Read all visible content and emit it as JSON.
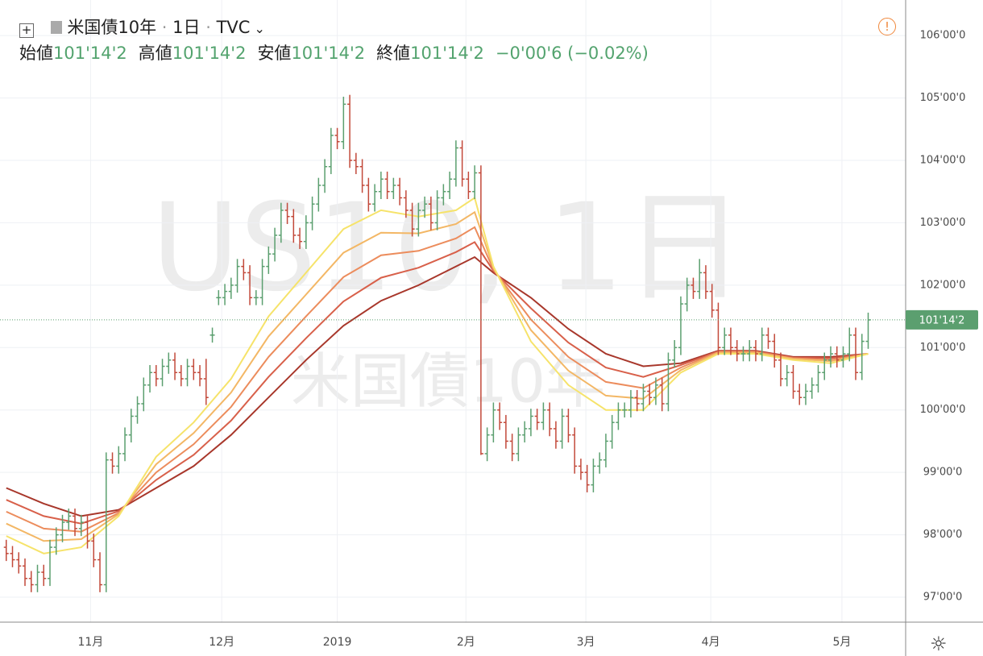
{
  "header": {
    "symbol_name": "米国債10年",
    "interval": "1日",
    "exchange": "TVC",
    "ohlc_legend": [
      {
        "label": "始値",
        "value": "101'14'2"
      },
      {
        "label": "高値",
        "value": "101'14'2"
      },
      {
        "label": "安値",
        "value": "101'14'2"
      },
      {
        "label": "終値",
        "value": "101'14'2"
      }
    ],
    "change": "−0'00'6 (−0.02%)"
  },
  "watermark": {
    "symbol": "US10, 1日",
    "name": "米国債10年"
  },
  "chart_data": {
    "type": "ohlc",
    "up_color": "#5b9f6f",
    "down_color": "#c2493a",
    "grid": true,
    "ylim": [
      96.6,
      106.57
    ],
    "xlim": [
      -1,
      144
    ],
    "yticks": [
      {
        "value": 97,
        "label": "97'00'0"
      },
      {
        "value": 98,
        "label": "98'00'0"
      },
      {
        "value": 99,
        "label": "99'00'0"
      },
      {
        "value": 100,
        "label": "100'00'0"
      },
      {
        "value": 101,
        "label": "101'00'0"
      },
      {
        "value": 102,
        "label": "102'00'0"
      },
      {
        "value": 103,
        "label": "103'00'0"
      },
      {
        "value": 104,
        "label": "104'00'0"
      },
      {
        "value": 105,
        "label": "105'00'0"
      },
      {
        "value": 106,
        "label": "106'00'0"
      }
    ],
    "xticks": [
      {
        "value": 13.5,
        "label": "11月"
      },
      {
        "value": 34.5,
        "label": "12月"
      },
      {
        "value": 53,
        "label": "2019"
      },
      {
        "value": 73.6,
        "label": "2月"
      },
      {
        "value": 92.8,
        "label": "3月"
      },
      {
        "value": 112.8,
        "label": "4月"
      },
      {
        "value": 133.8,
        "label": "5月"
      }
    ],
    "last_price": {
      "value": 101.44375,
      "label": "101'14'2",
      "color": "#5b9f6f"
    },
    "bars": [
      [
        97.8,
        97.92,
        97.58,
        97.7
      ],
      [
        97.7,
        97.82,
        97.48,
        97.6
      ],
      [
        97.6,
        97.72,
        97.38,
        97.5
      ],
      [
        97.5,
        97.62,
        97.18,
        97.3
      ],
      [
        97.3,
        97.42,
        97.08,
        97.2
      ],
      [
        97.2,
        97.52,
        97.08,
        97.4
      ],
      [
        97.4,
        97.52,
        97.18,
        97.3
      ],
      [
        97.3,
        97.92,
        97.18,
        97.8
      ],
      [
        97.8,
        98.12,
        97.68,
        98.0
      ],
      [
        98.0,
        98.32,
        97.88,
        98.2
      ],
      [
        98.2,
        98.42,
        98.08,
        98.3
      ],
      [
        98.3,
        98.42,
        97.98,
        98.1
      ],
      [
        98.1,
        98.32,
        97.98,
        98.2
      ],
      [
        98.2,
        98.32,
        97.78,
        97.9
      ],
      [
        97.9,
        98.02,
        97.48,
        97.6
      ],
      [
        97.6,
        97.72,
        97.08,
        97.2
      ],
      [
        97.2,
        99.32,
        97.08,
        99.2
      ],
      [
        99.2,
        99.32,
        98.98,
        99.1
      ],
      [
        99.1,
        99.42,
        98.98,
        99.3
      ],
      [
        99.3,
        99.72,
        99.18,
        99.6
      ],
      [
        99.6,
        100.02,
        99.48,
        99.9
      ],
      [
        99.9,
        100.22,
        99.78,
        100.1
      ],
      [
        100.1,
        100.52,
        99.98,
        100.4
      ],
      [
        100.4,
        100.72,
        100.28,
        100.6
      ],
      [
        100.6,
        100.72,
        100.38,
        100.5
      ],
      [
        100.5,
        100.82,
        100.38,
        100.7
      ],
      [
        100.7,
        100.92,
        100.58,
        100.8
      ],
      [
        100.8,
        100.92,
        100.48,
        100.6
      ],
      [
        100.6,
        100.72,
        100.38,
        100.5
      ],
      [
        100.5,
        100.82,
        100.38,
        100.7
      ],
      [
        100.7,
        100.82,
        100.48,
        100.6
      ],
      [
        100.6,
        100.72,
        100.38,
        100.5
      ],
      [
        100.5,
        100.82,
        100.08,
        100.2
      ],
      [
        101.2,
        101.32,
        101.08,
        101.2
      ],
      [
        101.8,
        101.92,
        101.68,
        101.8
      ],
      [
        101.8,
        102.02,
        101.68,
        101.9
      ],
      [
        101.9,
        102.12,
        101.78,
        102.0
      ],
      [
        102.0,
        102.42,
        101.88,
        102.3
      ],
      [
        102.3,
        102.42,
        102.08,
        102.2
      ],
      [
        102.2,
        102.32,
        101.68,
        101.8
      ],
      [
        101.8,
        101.92,
        101.68,
        101.8
      ],
      [
        101.8,
        102.42,
        101.68,
        102.3
      ],
      [
        102.3,
        102.62,
        102.18,
        102.5
      ],
      [
        102.5,
        102.92,
        102.38,
        102.8
      ],
      [
        102.8,
        103.32,
        102.68,
        103.2
      ],
      [
        103.2,
        103.32,
        102.98,
        103.1
      ],
      [
        103.1,
        103.22,
        102.68,
        102.8
      ],
      [
        102.8,
        102.92,
        102.58,
        102.7
      ],
      [
        102.7,
        103.12,
        102.58,
        103.0
      ],
      [
        103.0,
        103.42,
        102.88,
        103.3
      ],
      [
        103.3,
        103.72,
        103.18,
        103.6
      ],
      [
        103.6,
        104.02,
        103.48,
        103.9
      ],
      [
        103.9,
        104.52,
        103.78,
        104.4
      ],
      [
        104.4,
        104.52,
        104.18,
        104.3
      ],
      [
        104.3,
        105.02,
        104.18,
        104.9
      ],
      [
        104.9,
        105.05,
        103.88,
        104.0
      ],
      [
        104.0,
        104.12,
        103.78,
        103.9
      ],
      [
        103.9,
        104.02,
        103.48,
        103.6
      ],
      [
        103.6,
        103.72,
        103.18,
        103.3
      ],
      [
        103.3,
        103.62,
        103.18,
        103.5
      ],
      [
        103.5,
        103.82,
        103.38,
        103.7
      ],
      [
        103.7,
        103.82,
        103.38,
        103.5
      ],
      [
        103.5,
        103.72,
        103.38,
        103.6
      ],
      [
        103.6,
        103.72,
        103.28,
        103.4
      ],
      [
        103.4,
        103.52,
        103.08,
        103.2
      ],
      [
        103.2,
        103.32,
        102.78,
        102.9
      ],
      [
        102.9,
        103.32,
        102.78,
        103.2
      ],
      [
        103.2,
        103.42,
        103.08,
        103.3
      ],
      [
        103.3,
        103.42,
        102.88,
        103.0
      ],
      [
        103.0,
        103.52,
        102.88,
        103.4
      ],
      [
        103.4,
        103.62,
        103.28,
        103.5
      ],
      [
        103.5,
        103.82,
        103.38,
        103.7
      ],
      [
        103.7,
        104.32,
        103.58,
        104.2
      ],
      [
        104.2,
        104.32,
        103.58,
        103.7
      ],
      [
        103.7,
        103.82,
        103.38,
        103.5
      ],
      [
        103.5,
        103.92,
        103.38,
        103.8
      ],
      [
        103.8,
        103.92,
        99.28,
        99.3
      ],
      [
        99.3,
        99.72,
        99.18,
        99.6
      ],
      [
        99.6,
        100.12,
        99.48,
        100.0
      ],
      [
        100.0,
        100.12,
        99.68,
        99.8
      ],
      [
        99.8,
        99.92,
        99.38,
        99.5
      ],
      [
        99.5,
        99.62,
        99.18,
        99.3
      ],
      [
        99.3,
        99.72,
        99.18,
        99.6
      ],
      [
        99.6,
        99.82,
        99.48,
        99.7
      ],
      [
        99.7,
        100.02,
        99.58,
        99.9
      ],
      [
        99.9,
        100.02,
        99.68,
        99.8
      ],
      [
        99.8,
        100.12,
        99.68,
        100.0
      ],
      [
        100.0,
        100.12,
        99.58,
        99.7
      ],
      [
        99.7,
        99.82,
        99.38,
        99.5
      ],
      [
        99.5,
        100.02,
        99.38,
        99.9
      ],
      [
        99.9,
        100.02,
        99.48,
        99.6
      ],
      [
        99.6,
        99.72,
        98.98,
        99.1
      ],
      [
        99.1,
        99.22,
        98.88,
        99.0
      ],
      [
        99.0,
        99.12,
        98.68,
        98.8
      ],
      [
        98.8,
        99.22,
        98.68,
        99.1
      ],
      [
        99.1,
        99.32,
        98.98,
        99.2
      ],
      [
        99.2,
        99.62,
        99.08,
        99.5
      ],
      [
        99.5,
        99.92,
        99.38,
        99.8
      ],
      [
        99.8,
        100.12,
        99.68,
        100.0
      ],
      [
        100.0,
        100.12,
        99.88,
        100.0
      ],
      [
        100.0,
        100.32,
        99.88,
        100.2
      ],
      [
        100.2,
        100.32,
        99.98,
        100.1
      ],
      [
        100.1,
        100.42,
        99.98,
        100.3
      ],
      [
        100.3,
        100.42,
        100.08,
        100.2
      ],
      [
        100.2,
        100.52,
        100.08,
        100.4
      ],
      [
        100.4,
        100.52,
        99.98,
        100.1
      ],
      [
        100.1,
        100.92,
        99.98,
        100.8
      ],
      [
        100.8,
        101.12,
        100.68,
        101.0
      ],
      [
        101.0,
        101.82,
        100.88,
        101.7
      ],
      [
        101.7,
        102.12,
        101.58,
        102.0
      ],
      [
        102.0,
        102.12,
        101.78,
        101.9
      ],
      [
        101.9,
        102.42,
        101.78,
        102.2
      ],
      [
        102.2,
        102.32,
        101.78,
        101.9
      ],
      [
        101.9,
        102.02,
        101.48,
        101.6
      ],
      [
        101.6,
        101.72,
        100.88,
        101.0
      ],
      [
        101.0,
        101.32,
        100.88,
        101.2
      ],
      [
        101.2,
        101.32,
        100.88,
        101.0
      ],
      [
        101.0,
        101.12,
        100.78,
        100.9
      ],
      [
        100.9,
        101.02,
        100.78,
        100.9
      ],
      [
        100.9,
        101.12,
        100.78,
        101.0
      ],
      [
        101.0,
        101.12,
        100.78,
        100.9
      ],
      [
        100.9,
        101.32,
        100.78,
        101.2
      ],
      [
        101.2,
        101.32,
        100.98,
        101.1
      ],
      [
        101.1,
        101.22,
        100.68,
        100.8
      ],
      [
        100.8,
        100.92,
        100.38,
        100.5
      ],
      [
        100.5,
        100.72,
        100.38,
        100.6
      ],
      [
        100.6,
        100.72,
        100.18,
        100.3
      ],
      [
        100.3,
        100.42,
        100.08,
        100.2
      ],
      [
        100.2,
        100.42,
        100.08,
        100.3
      ],
      [
        100.3,
        100.52,
        100.18,
        100.4
      ],
      [
        100.4,
        100.72,
        100.28,
        100.6
      ],
      [
        100.6,
        100.92,
        100.48,
        100.8
      ],
      [
        100.8,
        101.02,
        100.68,
        100.9
      ],
      [
        100.9,
        101.02,
        100.68,
        100.8
      ],
      [
        100.8,
        101.02,
        100.68,
        100.9
      ],
      [
        100.9,
        101.32,
        100.78,
        101.2
      ],
      [
        101.2,
        101.32,
        100.48,
        100.6
      ],
      [
        100.6,
        101.22,
        100.48,
        101.1
      ],
      [
        101.1,
        101.56,
        100.98,
        101.44375
      ]
    ],
    "ribbon": {
      "x": [
        0,
        6,
        12,
        18,
        24,
        30,
        36,
        42,
        48,
        54,
        60,
        66,
        72,
        75,
        78,
        84,
        90,
        96,
        102,
        108,
        114,
        120,
        126,
        132,
        138
      ],
      "series": [
        {
          "color": "#a8372b",
          "values": [
            98.75,
            98.5,
            98.3,
            98.4,
            98.75,
            99.1,
            99.6,
            100.2,
            100.8,
            101.35,
            101.75,
            102.0,
            102.3,
            102.45,
            102.2,
            101.8,
            101.3,
            100.9,
            100.7,
            100.75,
            100.95,
            100.95,
            100.85,
            100.85,
            100.9
          ]
        },
        {
          "color": "#d8604a",
          "values": [
            98.56,
            98.3,
            98.18,
            98.38,
            98.88,
            99.28,
            99.83,
            100.53,
            101.15,
            101.74,
            102.12,
            102.28,
            102.53,
            102.69,
            102.23,
            101.63,
            101.08,
            100.68,
            100.53,
            100.72,
            100.94,
            100.94,
            100.84,
            100.83,
            100.9
          ]
        },
        {
          "color": "#ec8c5c",
          "values": [
            98.37,
            98.1,
            98.05,
            98.35,
            99.0,
            99.45,
            100.05,
            100.85,
            101.5,
            102.13,
            102.48,
            102.55,
            102.75,
            102.93,
            102.25,
            101.45,
            100.85,
            100.45,
            100.35,
            100.68,
            100.93,
            100.93,
            100.83,
            100.8,
            100.9
          ]
        },
        {
          "color": "#f3b765",
          "values": [
            98.18,
            97.9,
            97.93,
            98.33,
            99.13,
            99.63,
            100.28,
            101.18,
            101.85,
            102.52,
            102.84,
            102.83,
            102.98,
            103.17,
            102.28,
            101.28,
            100.63,
            100.23,
            100.18,
            100.64,
            100.92,
            100.92,
            100.82,
            100.78,
            100.9
          ]
        },
        {
          "color": "#f6e36a",
          "values": [
            97.98,
            97.7,
            97.8,
            98.3,
            99.25,
            99.8,
            100.5,
            101.5,
            102.2,
            102.9,
            103.2,
            103.1,
            103.2,
            103.4,
            102.3,
            101.1,
            100.4,
            100.0,
            100.0,
            100.6,
            100.9,
            100.9,
            100.8,
            100.75,
            100.9
          ]
        }
      ]
    }
  }
}
